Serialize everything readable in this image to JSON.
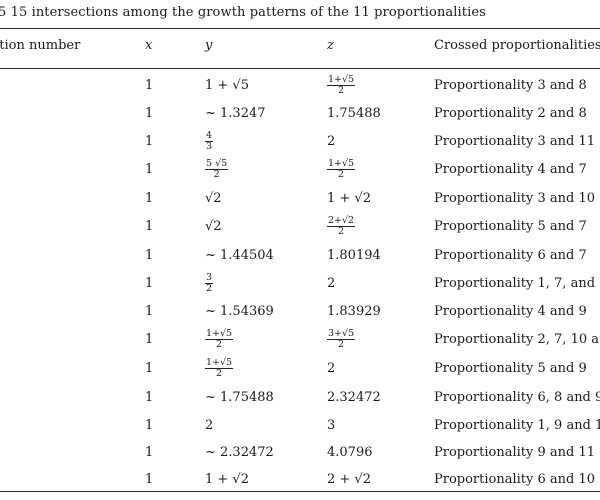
{
  "caption": "5  15 intersections among the growth patterns of the 11 proportionalities",
  "header": {
    "col_intersection": "ction number",
    "col_x": "x",
    "col_y": "y",
    "col_z": "z",
    "col_crossed": "Crossed proportionalities"
  },
  "rows": [
    {
      "x": "1",
      "y": "1 + √5",
      "z": {
        "num": "1+√5",
        "den": "2"
      },
      "crossed": "Proportionality 3 and 8"
    },
    {
      "x": "1",
      "y": "~ 1.3247",
      "z": "1.75488",
      "crossed": "Proportionality 2 and 8"
    },
    {
      "x": "1",
      "y": {
        "num": "4",
        "den": "3"
      },
      "z": "2",
      "crossed": "Proportionality 3 and 11"
    },
    {
      "x": "1",
      "y": {
        "num": "5  √5",
        "den": "2"
      },
      "z": {
        "num": "1+√5",
        "den": "2"
      },
      "crossed": "Proportionality 4 and 7"
    },
    {
      "x": "1",
      "y": "√2",
      "z": "1 + √2",
      "crossed": "Proportionality 3 and 10"
    },
    {
      "x": "1",
      "y": "√2",
      "z": {
        "num": "2+√2",
        "den": "2"
      },
      "crossed": "Proportionality 5 and 7"
    },
    {
      "x": "1",
      "y": "~ 1.44504",
      "z": "1.80194",
      "crossed": "Proportionality 6 and 7"
    },
    {
      "x": "1",
      "y": {
        "num": "3",
        "den": "2"
      },
      "z": "2",
      "crossed": "Proportionality 1, 7, and"
    },
    {
      "x": "1",
      "y": "~ 1.54369",
      "z": "1.83929",
      "crossed": "Proportionality 4 and 9"
    },
    {
      "x": "1",
      "y": {
        "num": "1+√5",
        "den": "2"
      },
      "z": {
        "num": "3+√5",
        "den": "2"
      },
      "crossed": "Proportionality 2, 7, 10 a"
    },
    {
      "x": "1",
      "y": {
        "num": "1+√5",
        "den": "2"
      },
      "z": "2",
      "crossed": "Proportionality 5 and 9"
    },
    {
      "x": "1",
      "y": "~ 1.75488",
      "z": "2.32472",
      "crossed": "Proportionality 6, 8 and 9"
    },
    {
      "x": "1",
      "y": "2",
      "z": "3",
      "crossed": "Proportionality 1, 9 and 1"
    },
    {
      "x": "1",
      "y": "~ 2.32472",
      "z": "4.0796",
      "crossed": "Proportionality 9 and 11"
    },
    {
      "x": "1",
      "y": "1 + √2",
      "z": "2 + √2",
      "crossed": "Proportionality 6 and 10"
    }
  ]
}
